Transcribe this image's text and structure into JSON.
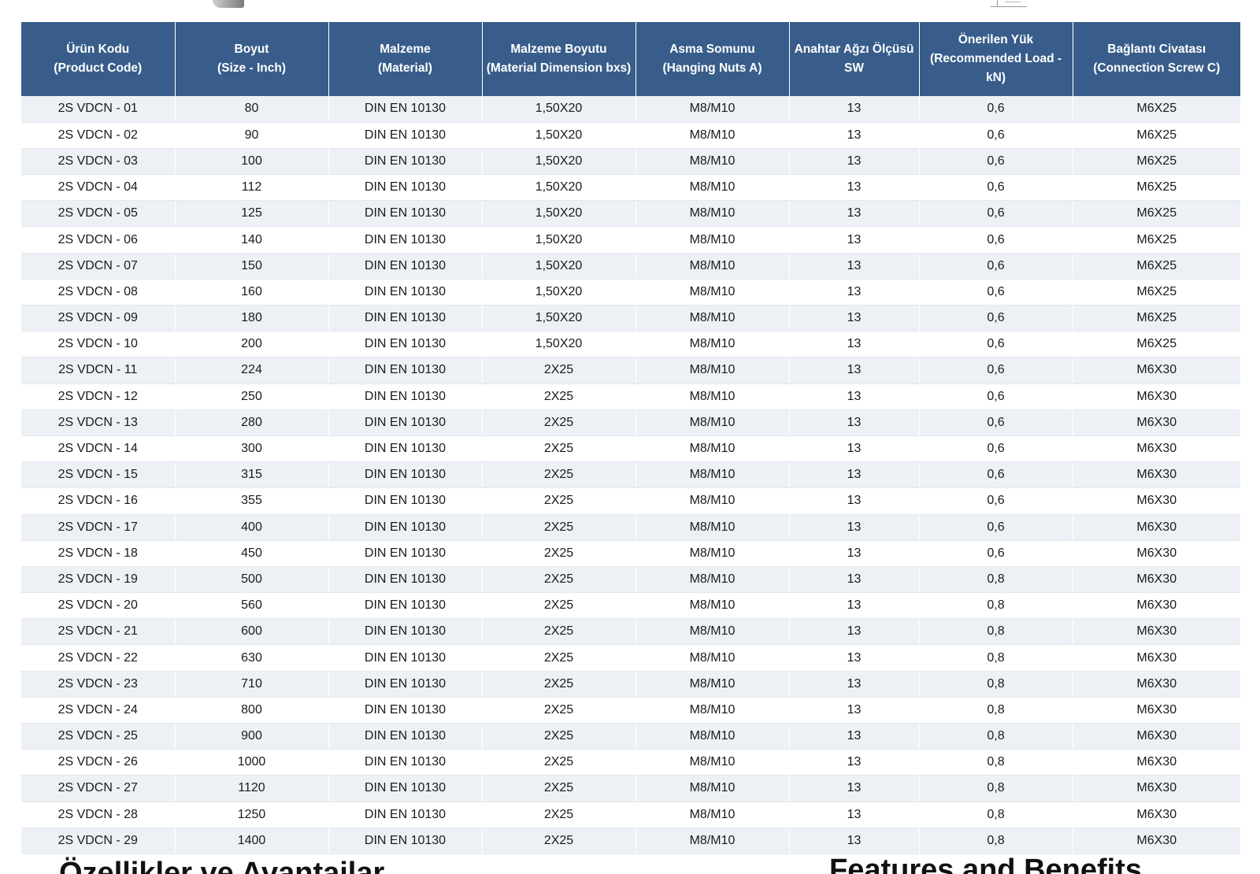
{
  "headers": [
    [
      "Ürün Kodu",
      "(Product Code)"
    ],
    [
      "Boyut",
      "(Size - Inch)"
    ],
    [
      "Malzeme",
      "(Material)"
    ],
    [
      "Malzeme Boyutu",
      "(Material Dimension bxs)"
    ],
    [
      "Asma Somunu",
      "(Hanging Nuts A)"
    ],
    [
      "Anahtar Ağzı Ölçüsü",
      "SW"
    ],
    [
      "Önerilen Yük",
      "(Recommended Load -",
      "kN)"
    ],
    [
      "Bağlantı Civatası",
      "(Connection Screw C)"
    ]
  ],
  "rows": [
    [
      "2S VDCN - 01",
      "80",
      "DIN EN 10130",
      "1,50X20",
      "M8/M10",
      "13",
      "0,6",
      "M6X25"
    ],
    [
      "2S VDCN - 02",
      "90",
      "DIN EN 10130",
      "1,50X20",
      "M8/M10",
      "13",
      "0,6",
      "M6X25"
    ],
    [
      "2S VDCN - 03",
      "100",
      "DIN EN 10130",
      "1,50X20",
      "M8/M10",
      "13",
      "0,6",
      "M6X25"
    ],
    [
      "2S VDCN - 04",
      "112",
      "DIN EN 10130",
      "1,50X20",
      "M8/M10",
      "13",
      "0,6",
      "M6X25"
    ],
    [
      "2S VDCN - 05",
      "125",
      "DIN EN 10130",
      "1,50X20",
      "M8/M10",
      "13",
      "0,6",
      "M6X25"
    ],
    [
      "2S VDCN - 06",
      "140",
      "DIN EN 10130",
      "1,50X20",
      "M8/M10",
      "13",
      "0,6",
      "M6X25"
    ],
    [
      "2S VDCN - 07",
      "150",
      "DIN EN 10130",
      "1,50X20",
      "M8/M10",
      "13",
      "0,6",
      "M6X25"
    ],
    [
      "2S VDCN - 08",
      "160",
      "DIN EN 10130",
      "1,50X20",
      "M8/M10",
      "13",
      "0,6",
      "M6X25"
    ],
    [
      "2S VDCN - 09",
      "180",
      "DIN EN 10130",
      "1,50X20",
      "M8/M10",
      "13",
      "0,6",
      "M6X25"
    ],
    [
      "2S VDCN - 10",
      "200",
      "DIN EN 10130",
      "1,50X20",
      "M8/M10",
      "13",
      "0,6",
      "M6X25"
    ],
    [
      "2S VDCN - 11",
      "224",
      "DIN EN 10130",
      "2X25",
      "M8/M10",
      "13",
      "0,6",
      "M6X30"
    ],
    [
      "2S VDCN - 12",
      "250",
      "DIN EN 10130",
      "2X25",
      "M8/M10",
      "13",
      "0,6",
      "M6X30"
    ],
    [
      "2S VDCN - 13",
      "280",
      "DIN EN 10130",
      "2X25",
      "M8/M10",
      "13",
      "0,6",
      "M6X30"
    ],
    [
      "2S VDCN - 14",
      "300",
      "DIN EN 10130",
      "2X25",
      "M8/M10",
      "13",
      "0,6",
      "M6X30"
    ],
    [
      "2S VDCN - 15",
      "315",
      "DIN EN 10130",
      "2X25",
      "M8/M10",
      "13",
      "0,6",
      "M6X30"
    ],
    [
      "2S VDCN - 16",
      "355",
      "DIN EN 10130",
      "2X25",
      "M8/M10",
      "13",
      "0,6",
      "M6X30"
    ],
    [
      "2S VDCN - 17",
      "400",
      "DIN EN 10130",
      "2X25",
      "M8/M10",
      "13",
      "0,6",
      "M6X30"
    ],
    [
      "2S VDCN - 18",
      "450",
      "DIN EN 10130",
      "2X25",
      "M8/M10",
      "13",
      "0,6",
      "M6X30"
    ],
    [
      "2S VDCN - 19",
      "500",
      "DIN EN 10130",
      "2X25",
      "M8/M10",
      "13",
      "0,8",
      "M6X30"
    ],
    [
      "2S VDCN - 20",
      "560",
      "DIN EN 10130",
      "2X25",
      "M8/M10",
      "13",
      "0,8",
      "M6X30"
    ],
    [
      "2S VDCN - 21",
      "600",
      "DIN EN 10130",
      "2X25",
      "M8/M10",
      "13",
      "0,8",
      "M6X30"
    ],
    [
      "2S VDCN - 22",
      "630",
      "DIN EN 10130",
      "2X25",
      "M8/M10",
      "13",
      "0,8",
      "M6X30"
    ],
    [
      "2S VDCN - 23",
      "710",
      "DIN EN 10130",
      "2X25",
      "M8/M10",
      "13",
      "0,8",
      "M6X30"
    ],
    [
      "2S VDCN - 24",
      "800",
      "DIN EN 10130",
      "2X25",
      "M8/M10",
      "13",
      "0,8",
      "M6X30"
    ],
    [
      "2S VDCN - 25",
      "900",
      "DIN EN 10130",
      "2X25",
      "M8/M10",
      "13",
      "0,8",
      "M6X30"
    ],
    [
      "2S VDCN - 26",
      "1000",
      "DIN EN 10130",
      "2X25",
      "M8/M10",
      "13",
      "0,8",
      "M6X30"
    ],
    [
      "2S VDCN - 27",
      "1120",
      "DIN EN 10130",
      "2X25",
      "M8/M10",
      "13",
      "0,8",
      "M6X30"
    ],
    [
      "2S VDCN - 28",
      "1250",
      "DIN EN 10130",
      "2X25",
      "M8/M10",
      "13",
      "0,8",
      "M6X30"
    ],
    [
      "2S VDCN - 29",
      "1400",
      "DIN EN 10130",
      "2X25",
      "M8/M10",
      "13",
      "0,8",
      "M6X30"
    ]
  ],
  "footer": {
    "left_heading": "Özellikler ve Avantajlar",
    "right_heading": "Features and Benefits"
  },
  "colors": {
    "header_bg": "#385d8a",
    "header_text": "#ffffff",
    "row_stripe": "#edf1f6"
  }
}
